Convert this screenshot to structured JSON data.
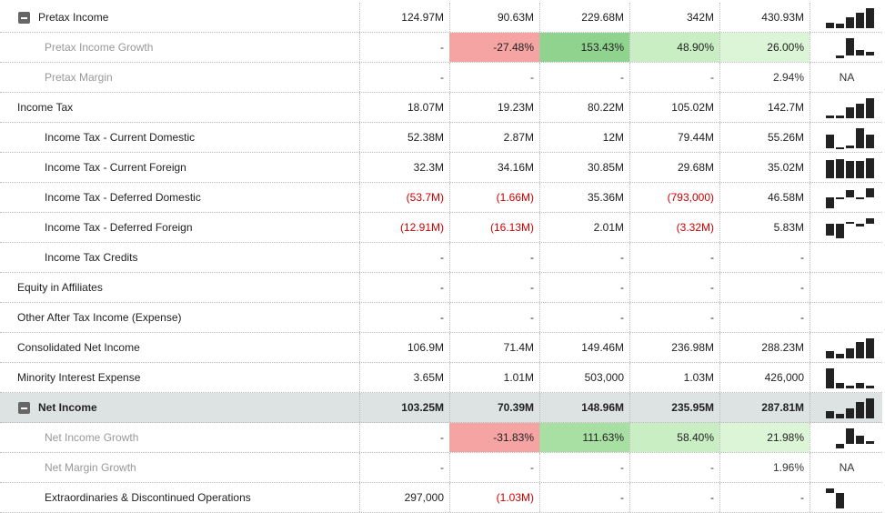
{
  "rows": [
    {
      "label": "Pretax Income",
      "kind": "section",
      "cells": [
        "124.97M",
        "90.63M",
        "229.68M",
        "342M",
        "430.93M"
      ],
      "trend": [
        124.97,
        90.63,
        229.68,
        342,
        430.93
      ]
    },
    {
      "label": "Pretax Income Growth",
      "kind": "sub-grey",
      "cells": [
        "-",
        "-27.48%",
        "153.43%",
        "48.90%",
        "26.00%"
      ],
      "cell_colors": [
        null,
        "#f5a3a3",
        "#8fd38f",
        "#c9eec3",
        "#dcf5d6"
      ],
      "trend": [
        null,
        -27.48,
        153.43,
        48.9,
        26
      ]
    },
    {
      "label": "Pretax Margin",
      "kind": "sub-grey",
      "cells": [
        "-",
        "-",
        "-",
        "-",
        "2.94%"
      ],
      "spark_label": "NA"
    },
    {
      "label": "Income Tax",
      "kind": "normal",
      "cells": [
        "18.07M",
        "19.23M",
        "80.22M",
        "105.02M",
        "142.7M"
      ],
      "trend": [
        18.07,
        19.23,
        80.22,
        105.02,
        142.7
      ]
    },
    {
      "label": "Income Tax - Current Domestic",
      "kind": "sub",
      "cells": [
        "52.38M",
        "2.87M",
        "12M",
        "79.44M",
        "55.26M"
      ],
      "trend": [
        52.38,
        2.87,
        12,
        79.44,
        55.26
      ]
    },
    {
      "label": "Income Tax - Current Foreign",
      "kind": "sub",
      "cells": [
        "32.3M",
        "34.16M",
        "30.85M",
        "29.68M",
        "35.02M"
      ],
      "trend": [
        32.3,
        34.16,
        30.85,
        29.68,
        35.02
      ]
    },
    {
      "label": "Income Tax - Deferred Domestic",
      "kind": "sub",
      "cells": [
        "(53.7M)",
        "(1.66M)",
        "35.36M",
        "(793,000)",
        "46.58M"
      ],
      "trend": [
        -53.7,
        -1.66,
        35.36,
        -0.793,
        46.58
      ]
    },
    {
      "label": "Income Tax - Deferred Foreign",
      "kind": "sub",
      "cells": [
        "(12.91M)",
        "(16.13M)",
        "2.01M",
        "(3.32M)",
        "5.83M"
      ],
      "trend": [
        -12.91,
        -16.13,
        2.01,
        -3.32,
        5.83
      ]
    },
    {
      "label": "Income Tax Credits",
      "kind": "sub",
      "cells": [
        "-",
        "-",
        "-",
        "-",
        "-"
      ]
    },
    {
      "label": "Equity in Affiliates",
      "kind": "normal",
      "cells": [
        "-",
        "-",
        "-",
        "-",
        "-"
      ]
    },
    {
      "label": "Other After Tax Income (Expense)",
      "kind": "normal",
      "cells": [
        "-",
        "-",
        "-",
        "-",
        "-"
      ]
    },
    {
      "label": "Consolidated Net Income",
      "kind": "normal",
      "cells": [
        "106.9M",
        "71.4M",
        "149.46M",
        "236.98M",
        "288.23M"
      ],
      "trend": [
        106.9,
        71.4,
        149.46,
        236.98,
        288.23
      ]
    },
    {
      "label": "Minority Interest Expense",
      "kind": "normal",
      "cells": [
        "3.65M",
        "1.01M",
        "503,000",
        "1.03M",
        "426,000"
      ],
      "trend": [
        3.65,
        1.01,
        0.503,
        1.03,
        0.426
      ]
    },
    {
      "label": "Net Income",
      "kind": "section-hl",
      "cells": [
        "103.25M",
        "70.39M",
        "148.96M",
        "235.95M",
        "287.81M"
      ],
      "trend": [
        103.25,
        70.39,
        148.96,
        235.95,
        287.81
      ]
    },
    {
      "label": "Net Income Growth",
      "kind": "sub-grey",
      "cells": [
        "-",
        "-31.83%",
        "111.63%",
        "58.40%",
        "21.98%"
      ],
      "cell_colors": [
        null,
        "#f5a3a3",
        "#a8e0a3",
        "#c9eec3",
        "#dcf5d6"
      ],
      "trend": [
        null,
        -31.83,
        111.63,
        58.4,
        21.98
      ]
    },
    {
      "label": "Net Margin Growth",
      "kind": "sub-grey",
      "cells": [
        "-",
        "-",
        "-",
        "-",
        "1.96%"
      ],
      "spark_label": "NA"
    },
    {
      "label": "Extraordinaries & Discontinued Operations",
      "kind": "sub",
      "cells": [
        "297,000",
        "(1.03M)",
        "-",
        "-",
        "-"
      ],
      "trend": [
        0.297,
        -1.03,
        null,
        null,
        null
      ]
    }
  ]
}
